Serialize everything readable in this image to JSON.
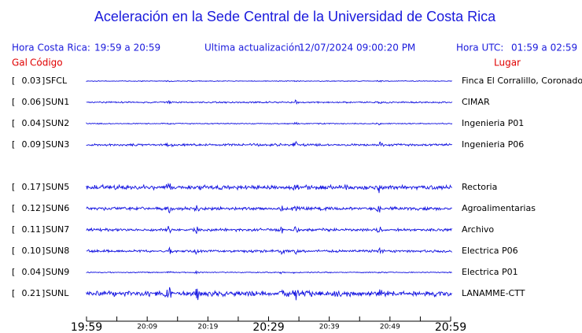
{
  "header": {
    "title": "Aceleración en la Sede Central de la Universidad de Costa Rica",
    "local_label": "Hora Costa Rica:",
    "local_range": "19:59 a 20:59",
    "update_label": "Ultima actualización:",
    "update_time": "12/07/2024 09:00:20 PM",
    "utc_label": "Hora UTC:",
    "utc_range": "01:59 a 02:59",
    "gal_heading": "Gal",
    "code_heading": "Código",
    "place_heading": "Lugar"
  },
  "stations": [
    {
      "gal": "0.03",
      "code": "SFCL",
      "place": "Finca El Corralillo, Coronado"
    },
    {
      "gal": "0.06",
      "code": "SUN1",
      "place": "CIMAR"
    },
    {
      "gal": "0.04",
      "code": "SUN2",
      "place": "Ingenieria P01"
    },
    {
      "gal": "0.09",
      "code": "SUN3",
      "place": "Ingenieria P06"
    },
    {
      "gal": "0.17",
      "code": "SUN5",
      "place": "Rectoria"
    },
    {
      "gal": "0.12",
      "code": "SUN6",
      "place": "Agroalimentarias"
    },
    {
      "gal": "0.11",
      "code": "SUN7",
      "place": "Archivo"
    },
    {
      "gal": "0.10",
      "code": "SUN8",
      "place": "Electrica P06"
    },
    {
      "gal": "0.04",
      "code": "SUN9",
      "place": "Electrica P01"
    },
    {
      "gal": "0.21",
      "code": "SUNL",
      "place": "LANAMME-CTT"
    }
  ],
  "time_ticks": [
    "19:59",
    null,
    "20:09",
    null,
    "20:19",
    null,
    "20:29",
    null,
    "20:39",
    null,
    "20:49",
    null,
    "20:59"
  ]
}
